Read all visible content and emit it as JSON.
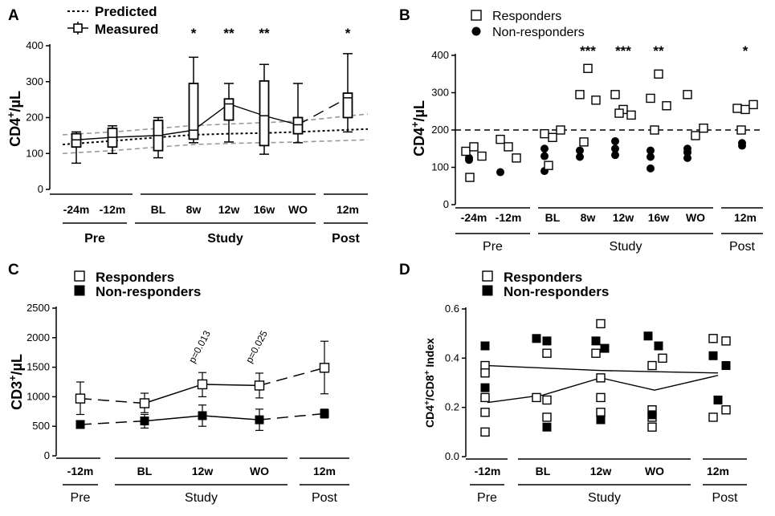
{
  "chart_data": [
    {
      "panel": "A",
      "type": "box",
      "ylabel": "CD4⁺/µL",
      "ylim": [
        0,
        400
      ],
      "yticks": [
        0,
        100,
        200,
        300,
        400
      ],
      "categories": [
        "-24m",
        "-12m",
        "BL",
        "8w",
        "12w",
        "16w",
        "WO",
        "12m"
      ],
      "groups": [
        {
          "label": "Pre",
          "categories": [
            "-24m",
            "-12m"
          ]
        },
        {
          "label": "Study",
          "categories": [
            "BL",
            "8w",
            "12w",
            "16w",
            "WO"
          ]
        },
        {
          "label": "Post",
          "categories": [
            "12m"
          ]
        }
      ],
      "legend": {
        "predicted": "Predicted",
        "measured": "Measured"
      },
      "boxes": [
        {
          "category": "-24m",
          "min": 73,
          "q1": 118,
          "median": 138,
          "q3": 155,
          "max": 160
        },
        {
          "category": "-12m",
          "min": 100,
          "q1": 118,
          "median": 145,
          "q3": 170,
          "max": 177
        },
        {
          "category": "BL",
          "min": 88,
          "q1": 108,
          "median": 150,
          "q3": 192,
          "max": 200
        },
        {
          "category": "8w",
          "min": 130,
          "q1": 140,
          "median": 165,
          "q3": 295,
          "max": 368
        },
        {
          "category": "12w",
          "min": 132,
          "q1": 193,
          "median": 238,
          "q3": 252,
          "max": 295
        },
        {
          "category": "16w",
          "min": 98,
          "q1": 122,
          "median": 205,
          "q3": 302,
          "max": 348
        },
        {
          "category": "WO",
          "min": 130,
          "q1": 155,
          "median": 180,
          "q3": 200,
          "max": 295
        },
        {
          "category": "12m",
          "min": 160,
          "q1": 200,
          "median": 255,
          "q3": 268,
          "max": 378
        }
      ],
      "predicted": {
        "x": [
          -24,
          -12,
          0,
          2,
          3,
          4,
          5,
          12
        ],
        "center": [
          125,
          135,
          145,
          152,
          155,
          157,
          160,
          168
        ],
        "upper": [
          152,
          160,
          170,
          178,
          182,
          186,
          190,
          210
        ],
        "lower": [
          100,
          108,
          118,
          125,
          128,
          130,
          132,
          138
        ]
      },
      "significance": [
        {
          "category": "8w",
          "label": "*"
        },
        {
          "category": "12w",
          "label": "**"
        },
        {
          "category": "16w",
          "label": "**"
        },
        {
          "category": "12m",
          "label": "*"
        }
      ]
    },
    {
      "panel": "B",
      "type": "scatter",
      "ylabel": "CD4⁺/µL",
      "ylim": [
        0,
        400
      ],
      "yticks": [
        0,
        100,
        200,
        300,
        400
      ],
      "categories": [
        "-24m",
        "-12m",
        "BL",
        "8w",
        "12w",
        "16w",
        "WO",
        "12m"
      ],
      "groups": [
        {
          "label": "Pre",
          "categories": [
            "-24m",
            "-12m"
          ]
        },
        {
          "label": "Study",
          "categories": [
            "BL",
            "8w",
            "12w",
            "16w",
            "WO"
          ]
        },
        {
          "label": "Post",
          "categories": [
            "12m"
          ]
        }
      ],
      "threshold": 200,
      "series": [
        {
          "name": "Responders",
          "marker": "open-square",
          "points": [
            [
              "-24m",
              143
            ],
            [
              "-24m",
              155
            ],
            [
              "-24m",
              130
            ],
            [
              "-24m",
              73
            ],
            [
              "-12m",
              175
            ],
            [
              "-12m",
              155
            ],
            [
              "-12m",
              125
            ],
            [
              "BL",
              190
            ],
            [
              "BL",
              180
            ],
            [
              "BL",
              200
            ],
            [
              "BL",
              105
            ],
            [
              "8w",
              295
            ],
            [
              "8w",
              365
            ],
            [
              "8w",
              280
            ],
            [
              "8w",
              168
            ],
            [
              "12w",
              295
            ],
            [
              "12w",
              255
            ],
            [
              "12w",
              240
            ],
            [
              "12w",
              245
            ],
            [
              "16w",
              285
            ],
            [
              "16w",
              350
            ],
            [
              "16w",
              265
            ],
            [
              "16w",
              200
            ],
            [
              "WO",
              295
            ],
            [
              "WO",
              185
            ],
            [
              "WO",
              205
            ],
            [
              "12m",
              258
            ],
            [
              "12m",
              255
            ],
            [
              "12m",
              268
            ],
            [
              "12m",
              200
            ]
          ]
        },
        {
          "name": "Non-responders",
          "marker": "filled-circle",
          "points": [
            [
              "-24m",
              125
            ],
            [
              "-24m",
              120
            ],
            [
              "-12m",
              87
            ],
            [
              "BL",
              150
            ],
            [
              "BL",
              130
            ],
            [
              "BL",
              90
            ],
            [
              "8w",
              145
            ],
            [
              "8w",
              128
            ],
            [
              "12w",
              170
            ],
            [
              "12w",
              150
            ],
            [
              "12w",
              133
            ],
            [
              "16w",
              145
            ],
            [
              "16w",
              128
            ],
            [
              "16w",
              97
            ],
            [
              "WO",
              150
            ],
            [
              "WO",
              140
            ],
            [
              "WO",
              125
            ],
            [
              "12m",
              165
            ],
            [
              "12m",
              158
            ]
          ]
        }
      ],
      "significance": [
        {
          "category": "8w",
          "label": "***"
        },
        {
          "category": "12w",
          "label": "***"
        },
        {
          "category": "16w",
          "label": "**"
        },
        {
          "category": "12m",
          "label": "*"
        }
      ]
    },
    {
      "panel": "C",
      "type": "line",
      "ylabel": "CD3⁺/µL",
      "ylim": [
        0,
        2500
      ],
      "yticks": [
        0,
        500,
        1000,
        1500,
        2000,
        2500
      ],
      "categories": [
        "-12m",
        "BL",
        "12w",
        "WO",
        "12m"
      ],
      "groups": [
        {
          "label": "Pre",
          "categories": [
            "-12m"
          ]
        },
        {
          "label": "Study",
          "categories": [
            "BL",
            "12w",
            "WO"
          ]
        },
        {
          "label": "Post",
          "categories": [
            "12m"
          ]
        }
      ],
      "series": [
        {
          "name": "Responders",
          "marker": "open-square",
          "values": [
            970,
            890,
            1210,
            1190,
            1490
          ],
          "err_low": [
            700,
            730,
            1000,
            980,
            1050
          ],
          "err_high": [
            1250,
            1060,
            1410,
            1400,
            1940
          ]
        },
        {
          "name": "Non-responders",
          "marker": "filled-square",
          "values": [
            530,
            590,
            680,
            610,
            715
          ],
          "err_low": [
            530,
            470,
            500,
            430,
            640
          ],
          "err_high": [
            530,
            700,
            860,
            790,
            790
          ]
        }
      ],
      "annotations": [
        {
          "category": "12w",
          "text": "p=0.013"
        },
        {
          "category": "WO",
          "text": "p=0.025"
        }
      ]
    },
    {
      "panel": "D",
      "type": "scatter",
      "ylabel": "CD4⁺/CD8⁺ Index",
      "ylim": [
        0.0,
        0.6
      ],
      "yticks": [
        "0.0",
        "0.2",
        "0.4",
        "0.6"
      ],
      "categories": [
        "-12m",
        "BL",
        "12w",
        "WO",
        "12m"
      ],
      "groups": [
        {
          "label": "Pre",
          "categories": [
            "-12m"
          ]
        },
        {
          "label": "Study",
          "categories": [
            "BL",
            "12w",
            "WO"
          ]
        },
        {
          "label": "Post",
          "categories": [
            "12m"
          ]
        }
      ],
      "series": [
        {
          "name": "Responders",
          "marker": "open-square",
          "points": [
            [
              "-12m",
              0.37
            ],
            [
              "-12m",
              0.34
            ],
            [
              "-12m",
              0.24
            ],
            [
              "-12m",
              0.18
            ],
            [
              "-12m",
              0.1
            ],
            [
              "BL",
              0.42
            ],
            [
              "BL",
              0.24
            ],
            [
              "BL",
              0.23
            ],
            [
              "BL",
              0.16
            ],
            [
              "12w",
              0.54
            ],
            [
              "12w",
              0.42
            ],
            [
              "12w",
              0.32
            ],
            [
              "12w",
              0.24
            ],
            [
              "12w",
              0.18
            ],
            [
              "WO",
              0.4
            ],
            [
              "WO",
              0.37
            ],
            [
              "WO",
              0.19
            ],
            [
              "WO",
              0.16
            ],
            [
              "WO",
              0.12
            ],
            [
              "12m",
              0.48
            ],
            [
              "12m",
              0.47
            ],
            [
              "12m",
              0.19
            ],
            [
              "12m",
              0.16
            ]
          ],
          "trend": [
            0.22,
            0.25,
            0.32,
            0.27,
            0.33
          ]
        },
        {
          "name": "Non-responders",
          "marker": "filled-square",
          "points": [
            [
              "-12m",
              0.45
            ],
            [
              "-12m",
              0.28
            ],
            [
              "BL",
              0.48
            ],
            [
              "BL",
              0.47
            ],
            [
              "BL",
              0.12
            ],
            [
              "12w",
              0.47
            ],
            [
              "12w",
              0.44
            ],
            [
              "12w",
              0.15
            ],
            [
              "WO",
              0.49
            ],
            [
              "WO",
              0.45
            ],
            [
              "WO",
              0.17
            ],
            [
              "12m",
              0.41
            ],
            [
              "12m",
              0.37
            ],
            [
              "12m",
              0.23
            ]
          ],
          "trend": [
            0.37,
            0.36,
            0.35,
            0.345,
            0.34
          ]
        }
      ]
    }
  ]
}
